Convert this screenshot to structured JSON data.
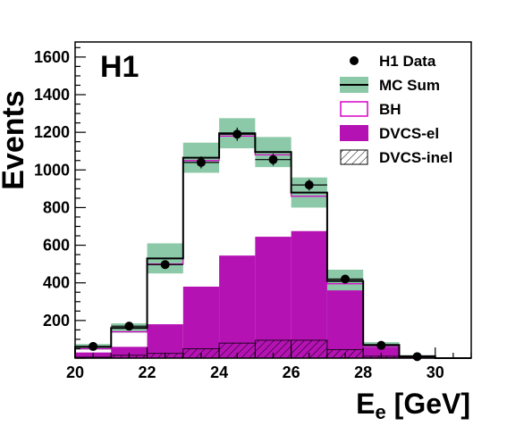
{
  "chart_data": {
    "type": "histogram",
    "experiment_label": "H1",
    "xlabel_main": "E",
    "xlabel_sub": "e",
    "xlabel_unit": " [GeV]",
    "ylabel": "Events",
    "xlim": [
      20,
      31
    ],
    "ylim": [
      0,
      1680
    ],
    "x_ticks": [
      20,
      22,
      24,
      26,
      28,
      30
    ],
    "y_ticks": [
      200,
      400,
      600,
      800,
      1000,
      1200,
      1400,
      1600
    ],
    "bin_edges": [
      20,
      21,
      22,
      23,
      24,
      25,
      26,
      27,
      28,
      29,
      30,
      31
    ],
    "series": [
      {
        "name": "H1 Data",
        "kind": "points",
        "x": [
          20.5,
          21.5,
          22.5,
          23.5,
          24.5,
          25.5,
          26.5,
          27.5,
          28.5,
          29.5
        ],
        "values": [
          62,
          170,
          497,
          1040,
          1190,
          1055,
          920,
          420,
          68,
          8
        ],
        "errors": [
          8,
          13,
          22,
          32,
          35,
          32,
          30,
          20,
          8,
          3
        ],
        "color": "#000000"
      },
      {
        "name": "MC Sum",
        "kind": "step",
        "values": [
          60,
          160,
          530,
          1065,
          1195,
          1095,
          880,
          410,
          70,
          10,
          0
        ],
        "band": [
          15,
          25,
          80,
          80,
          80,
          80,
          80,
          60,
          15,
          5,
          0
        ],
        "color": "#000000",
        "band_color": "#8cc9a8"
      },
      {
        "name": "BH",
        "kind": "fill",
        "values": [
          50,
          140,
          500,
          1050,
          1180,
          1080,
          860,
          395,
          65,
          8,
          0
        ],
        "color": "#d800c8",
        "fill": "#ffffff"
      },
      {
        "name": "DVCS-el",
        "kind": "fill",
        "values": [
          30,
          60,
          180,
          380,
          545,
          645,
          675,
          360,
          60,
          5,
          0
        ],
        "color": "#b512b4"
      },
      {
        "name": "DVCS-inel",
        "kind": "hatch",
        "values": [
          5,
          15,
          25,
          50,
          80,
          95,
          95,
          45,
          10,
          2,
          0
        ],
        "color": "#000000"
      }
    ],
    "legend": {
      "placement": "top-right",
      "entries": [
        "H1 Data",
        "MC Sum",
        "BH",
        "DVCS-el",
        "DVCS-inel"
      ]
    },
    "grid": false
  }
}
